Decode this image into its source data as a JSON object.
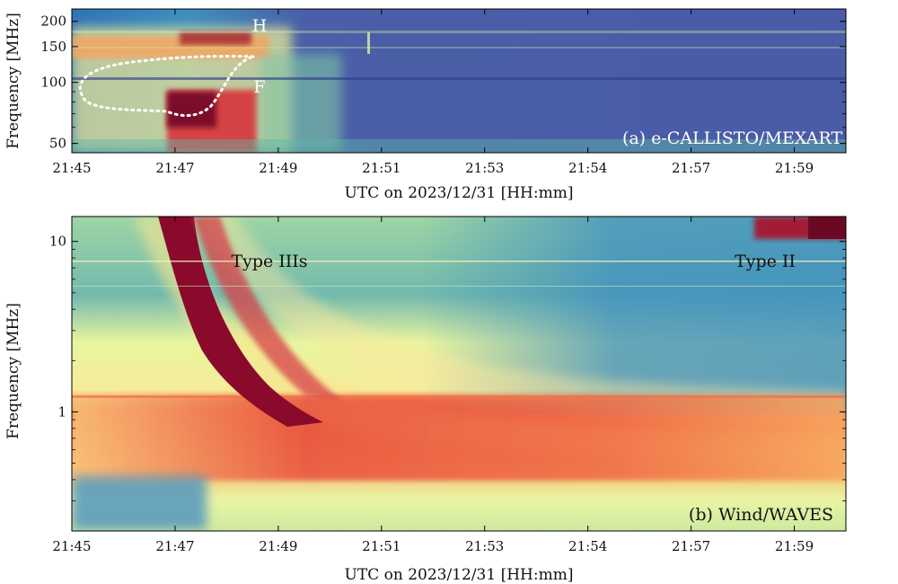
{
  "chart_data": [
    {
      "type": "heatmap",
      "panel": "a",
      "panel_label": "(a) e-CALLISTO/MEXART",
      "xlabel": "UTC on 2023/12/31 [HH:mm]",
      "ylabel": "Frequency [MHz]",
      "x_tick_labels": [
        "21:45",
        "21:47",
        "21:49",
        "21:51",
        "21:53",
        "21:54",
        "21:57",
        "21:59"
      ],
      "y_ticks": [
        50,
        100,
        150,
        200
      ],
      "y_tick_labels": [
        "50",
        "100",
        "150",
        "200"
      ],
      "ylim": [
        45,
        230
      ],
      "y_scale": "log",
      "colormap": "Spectral_r",
      "annotations": [
        {
          "text": "H",
          "x": "21:48.5",
          "y": 180
        },
        {
          "text": "F",
          "x": "21:48.5",
          "y": 95
        }
      ],
      "outline": {
        "style": "white dotted",
        "description_points_mhz": [
          [
            21.75,
            100
          ],
          [
            21.78,
            120
          ],
          [
            21.8,
            125
          ],
          [
            21.8,
            78
          ],
          [
            21.82,
            75
          ],
          [
            21.85,
            90
          ],
          [
            21.8,
            120
          ]
        ]
      }
    },
    {
      "type": "heatmap",
      "panel": "b",
      "panel_label": "(b) Wind/WAVES",
      "xlabel": "UTC on 2023/12/31 [HH:mm]",
      "ylabel": "Frequency [MHz]",
      "x_tick_labels": [
        "21:45",
        "21:47",
        "21:49",
        "21:51",
        "21:53",
        "21:54",
        "21:57",
        "21:59"
      ],
      "y_ticks": [
        1,
        10
      ],
      "y_tick_labels": [
        "1",
        "10"
      ],
      "ylim": [
        0.2,
        14
      ],
      "y_scale": "log",
      "colormap": "Spectral_r",
      "annotations": [
        {
          "text": "Type IIIs",
          "x": "21:48.7",
          "y": 7
        },
        {
          "text": "Type II",
          "x": "21:58.5",
          "y": 7
        }
      ]
    }
  ]
}
